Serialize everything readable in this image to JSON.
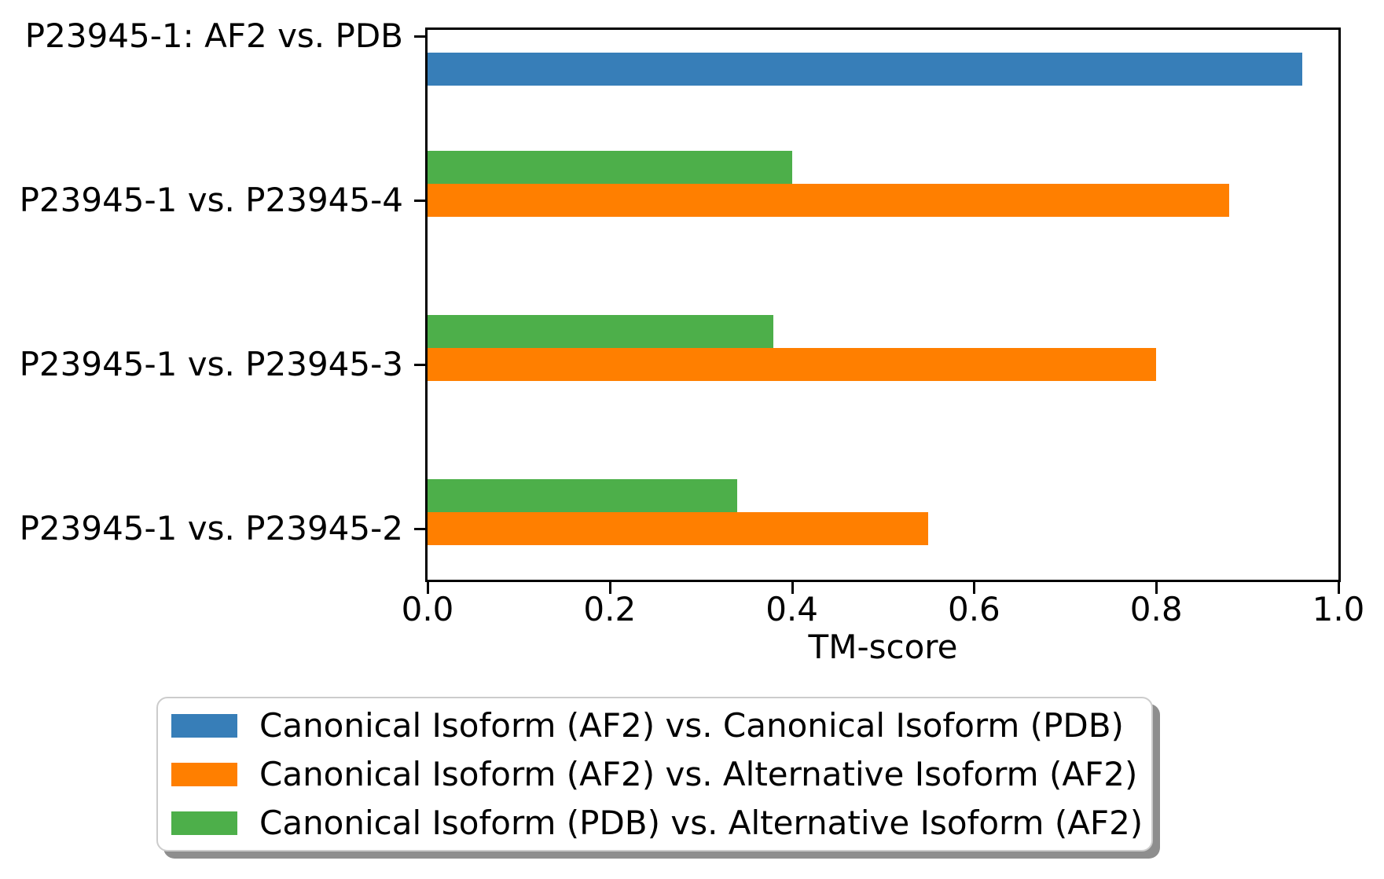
{
  "chart_data": {
    "type": "bar",
    "orientation": "horizontal",
    "title": "",
    "xlabel": "TM-score",
    "ylabel": "",
    "xlim": [
      0.0,
      1.0
    ],
    "x_tick_labels": [
      "0.0",
      "0.2",
      "0.4",
      "0.6",
      "0.8",
      "1.0"
    ],
    "categories": [
      "P23945-1: AF2 vs. PDB",
      "P23945-1 vs. P23945-4",
      "P23945-1 vs. P23945-3",
      "P23945-1 vs. P23945-2"
    ],
    "series": [
      {
        "name": "Canonical Isoform (AF2) vs. Canonical Isoform (PDB)",
        "color": "#377eb8",
        "values": [
          0.96,
          null,
          null,
          null
        ]
      },
      {
        "name": "Canonical Isoform (AF2) vs. Alternative Isoform (AF2)",
        "color": "#ff7f00",
        "values": [
          null,
          0.88,
          0.8,
          0.55
        ]
      },
      {
        "name": "Canonical Isoform (PDB) vs. Alternative Isoform (AF2)",
        "color": "#4daf4a",
        "values": [
          null,
          0.4,
          0.38,
          0.34
        ]
      }
    ],
    "legend": {
      "position": "below-chart",
      "border_color": "#cccccc",
      "shadow_color": "#8e8e8e"
    },
    "axis_color": "#000000",
    "grid": false
  }
}
